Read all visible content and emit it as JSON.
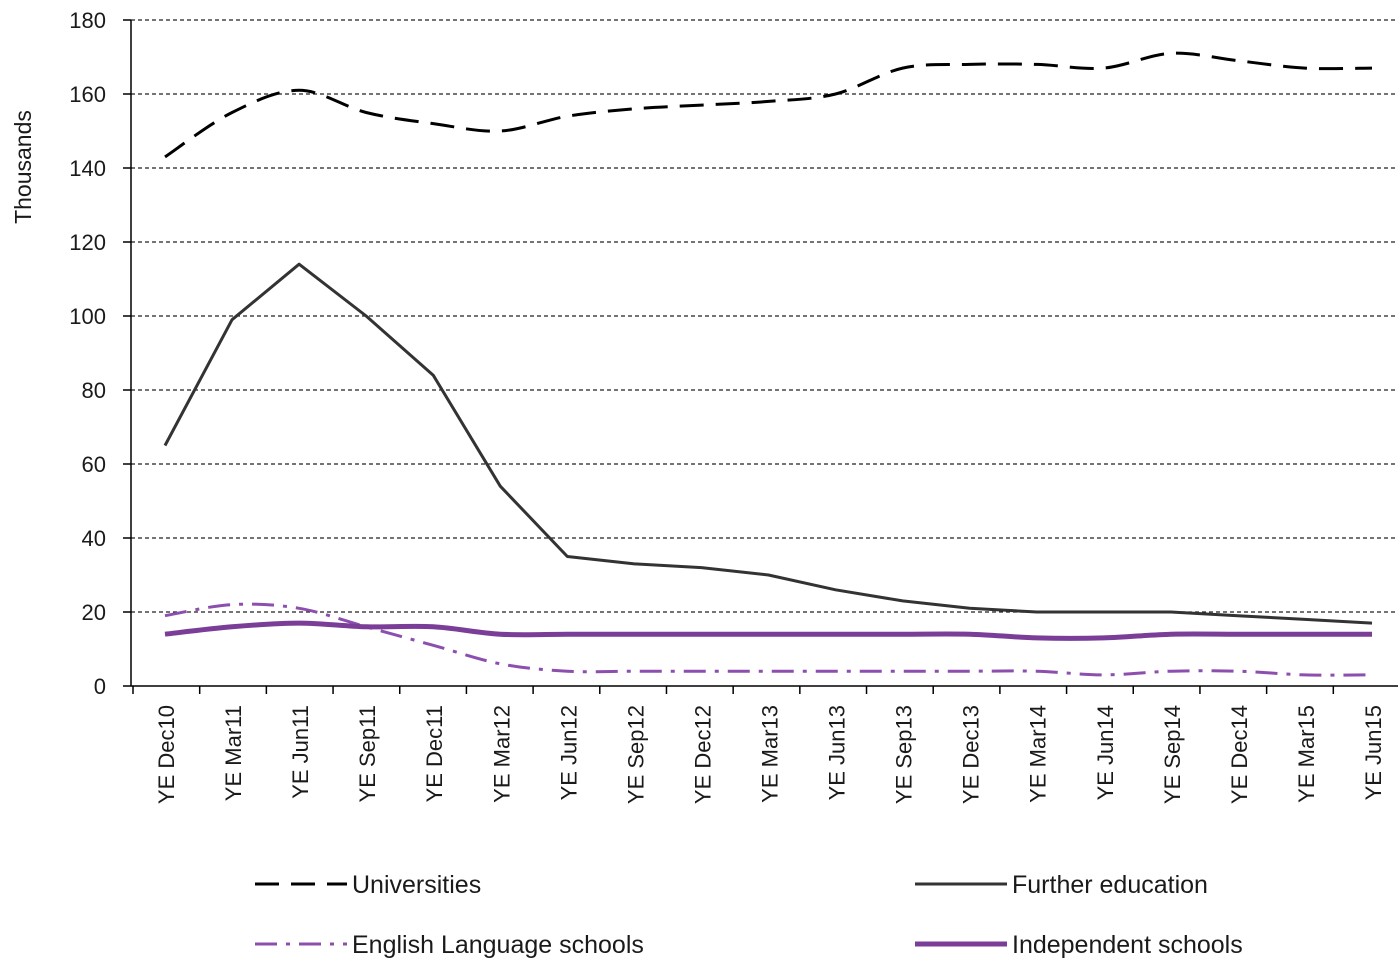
{
  "chart_data": {
    "type": "line",
    "ylabel": "Thousands",
    "xlabel": "",
    "ylim": [
      0,
      180
    ],
    "yticks": [
      0,
      20,
      40,
      60,
      80,
      100,
      120,
      140,
      160,
      180
    ],
    "grid": "horizontal dashed",
    "legend_position": "bottom",
    "categories": [
      "YE Dec10",
      "YE Mar11",
      "YE Jun11",
      "YE Sep11",
      "YE Dec11",
      "YE Mar12",
      "YE Jun12",
      "YE Sep12",
      "YE Dec12",
      "YE Mar13",
      "YE Jun13",
      "YE Sep13",
      "YE Dec13",
      "YE Mar14",
      "YE Jun14",
      "YE Sep14",
      "YE Dec14",
      "YE Mar15",
      "YE Jun15"
    ],
    "series": [
      {
        "name": "Universities",
        "color": "#000000",
        "style": "long-dash",
        "values": [
          143,
          155,
          161,
          155,
          152,
          150,
          154,
          156,
          157,
          158,
          160,
          167,
          168,
          168,
          167,
          171,
          169,
          167,
          167
        ]
      },
      {
        "name": "Further education",
        "color": "#333333",
        "style": "solid",
        "values": [
          65,
          99,
          114,
          100,
          84,
          54,
          35,
          33,
          32,
          30,
          26,
          23,
          21,
          20,
          20,
          20,
          19,
          18,
          17
        ]
      },
      {
        "name": "English Language schools",
        "color": "#8c4fae",
        "style": "dash-dot",
        "values": [
          19,
          22,
          21,
          16,
          11,
          6,
          4,
          4,
          4,
          4,
          4,
          4,
          4,
          4,
          3,
          4,
          4,
          3,
          3
        ]
      },
      {
        "name": "Independent schools",
        "color": "#7a3d98",
        "style": "thick-solid",
        "values": [
          14,
          16,
          17,
          16,
          16,
          14,
          14,
          14,
          14,
          14,
          14,
          14,
          14,
          13,
          13,
          14,
          14,
          14,
          14
        ]
      }
    ]
  }
}
